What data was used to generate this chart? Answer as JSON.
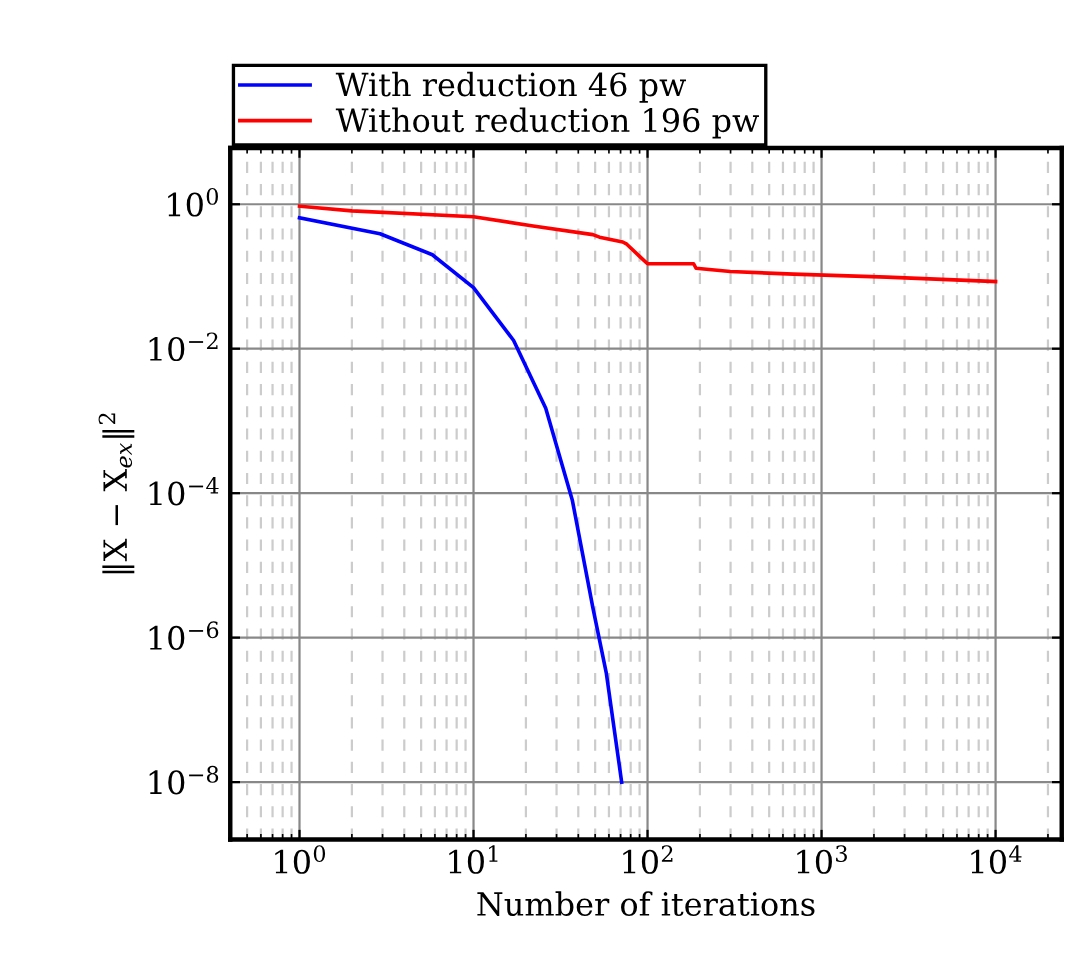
{
  "chart_data": {
    "type": "line",
    "xlabel": "Number of iterations",
    "ylabel": "‖X − X$_{ex}$‖$^{2}$",
    "log": "xy",
    "grid": true,
    "legend": "top",
    "line_style": "solid",
    "marker": "none",
    "xlim": [
      0.4,
      24000
    ],
    "ylim": [
      1.6e-09,
      6
    ],
    "xticks": [
      {
        "value": 1,
        "label": "10$^{0}$"
      },
      {
        "value": 10,
        "label": "10$^{1}$"
      },
      {
        "value": 100,
        "label": "10$^{2}$"
      },
      {
        "value": 1000,
        "label": "10$^{3}$"
      },
      {
        "value": 10000,
        "label": "10$^{4}$"
      }
    ],
    "yticks": [
      {
        "value": 1e-08,
        "label": "10$^{−8}$"
      },
      {
        "value": 1e-06,
        "label": "10$^{−6}$"
      },
      {
        "value": 0.0001,
        "label": "10$^{−4}$"
      },
      {
        "value": 0.01,
        "label": "10$^{−2}$"
      },
      {
        "value": 1,
        "label": "10$^{0}$"
      }
    ],
    "series": [
      {
        "name": "With reduction 46 pw",
        "color": "#0000ff",
        "x": [
          1,
          2.9,
          5.8,
          10,
          17,
          26,
          37,
          48.5,
          58,
          71
        ],
        "values": [
          0.65,
          0.39,
          0.2,
          0.07,
          0.013,
          0.0015,
          7.9e-05,
          2.6e-06,
          3.2e-07,
          1e-08
        ]
      },
      {
        "name": "Without reduction 196 pw",
        "color": "#ff0000",
        "x": [
          1,
          2,
          10,
          22,
          48.5,
          53,
          72,
          76,
          90,
          100,
          184,
          190,
          299,
          690,
          2370,
          10000
        ],
        "values": [
          0.94,
          0.81,
          0.67,
          0.5,
          0.38,
          0.35,
          0.3,
          0.28,
          0.19,
          0.15,
          0.15,
          0.13,
          0.117,
          0.108,
          0.098,
          0.085
        ]
      }
    ]
  }
}
